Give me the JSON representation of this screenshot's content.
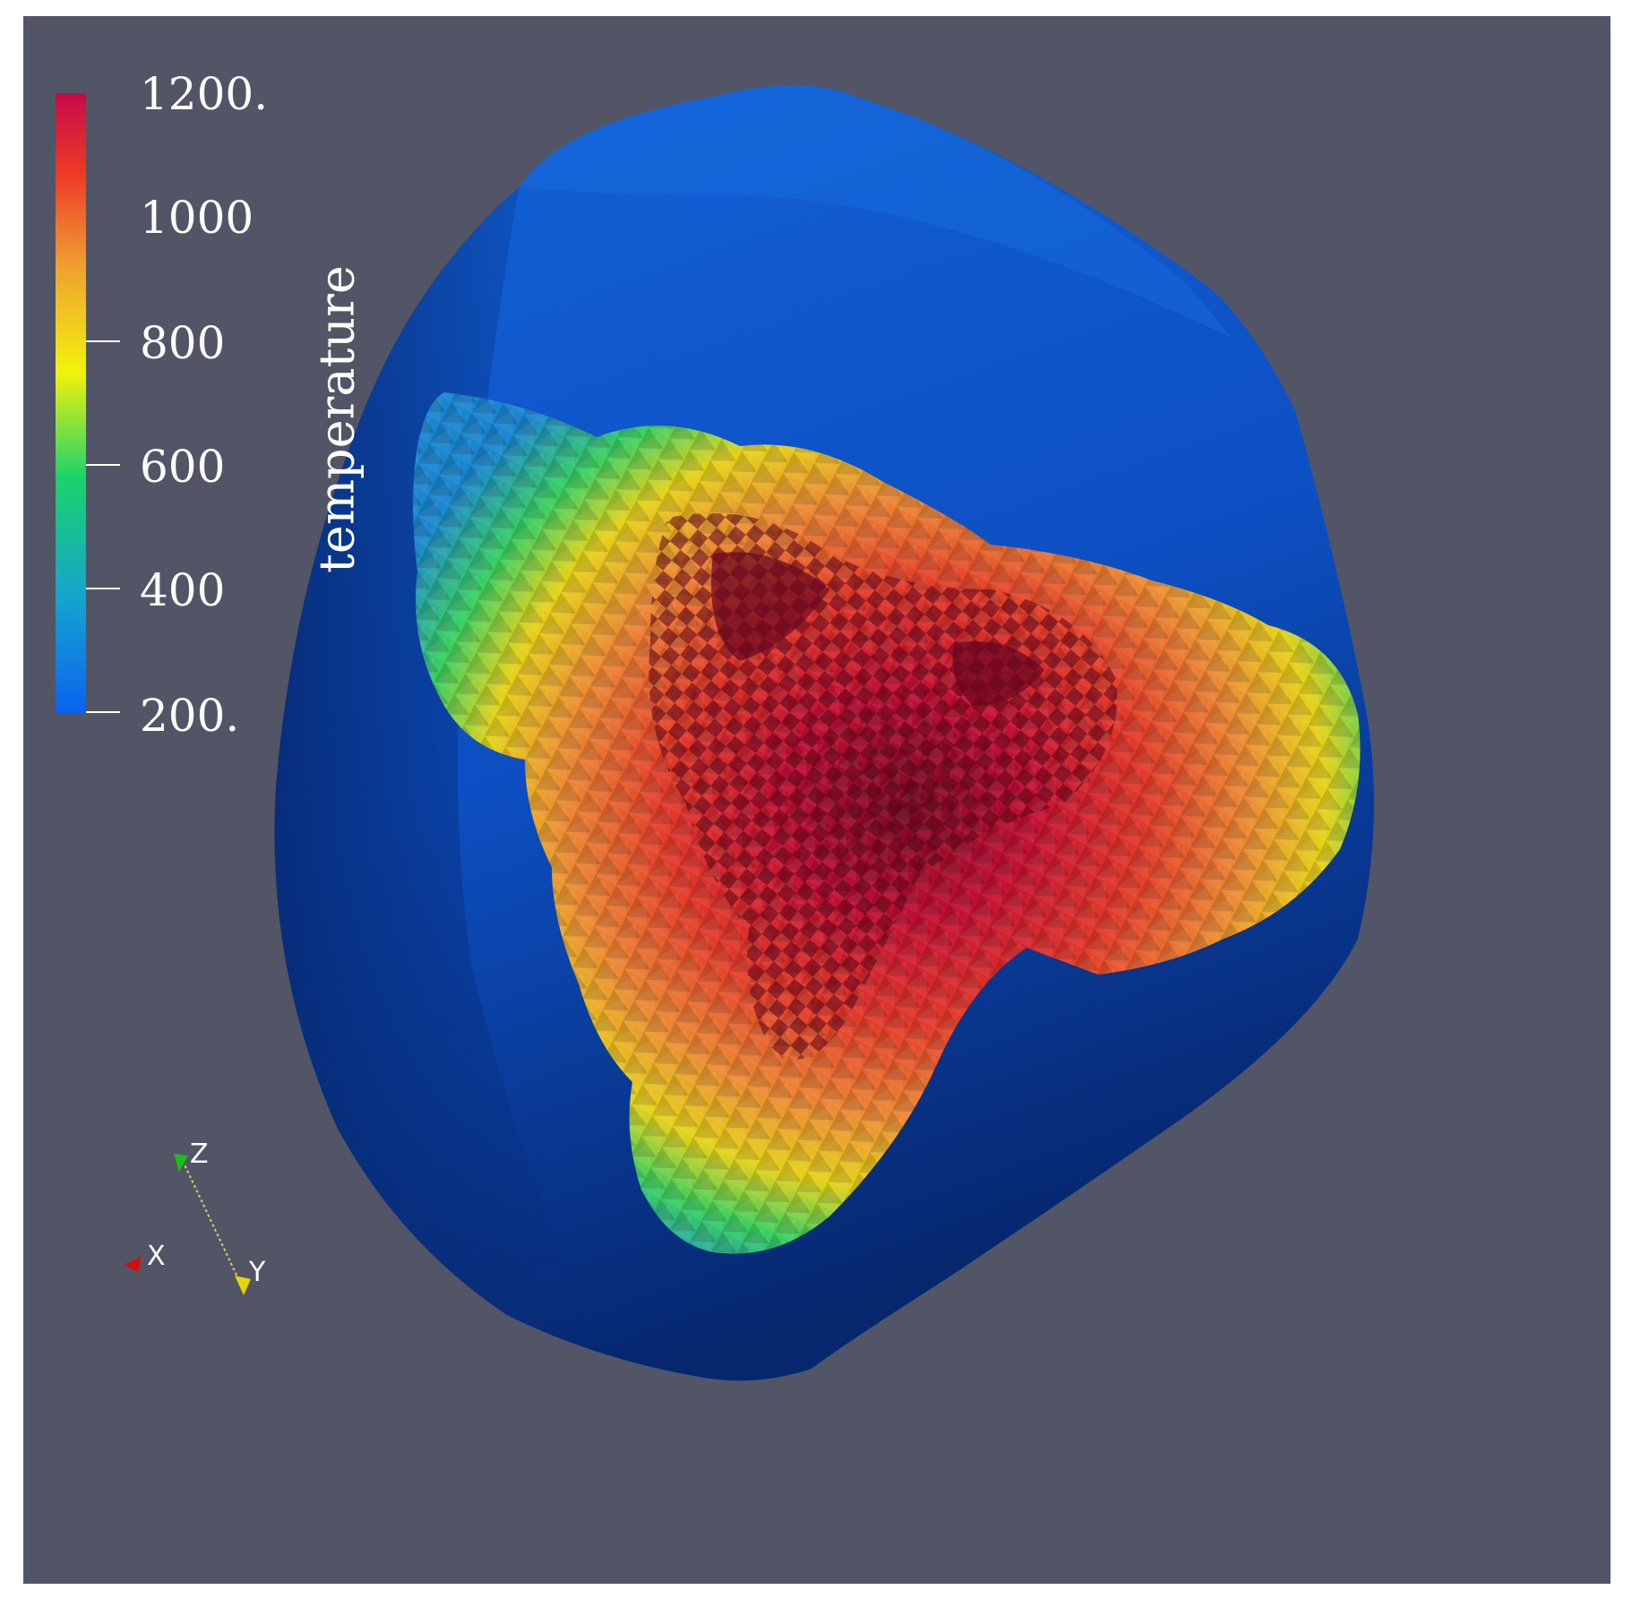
{
  "colorbar": {
    "title": "temperature",
    "ticks": [
      {
        "label": "1200.",
        "value": 1200
      },
      {
        "label": "1000",
        "value": 1000
      },
      {
        "label": "800",
        "value": 800
      },
      {
        "label": "600",
        "value": 600
      },
      {
        "label": "400",
        "value": 400
      },
      {
        "label": "200.",
        "value": 200
      }
    ],
    "range": [
      200,
      1200
    ],
    "colormap": [
      "#0b63f0",
      "#14a3d0",
      "#1bd36a",
      "#f2f20c",
      "#f0a030",
      "#ee3a26",
      "#c8094a"
    ]
  },
  "orientation_axes": {
    "x": {
      "label": "X",
      "color": "#d01010"
    },
    "y": {
      "label": "Y",
      "color": "#e6d500"
    },
    "z": {
      "label": "Z",
      "color": "#18c018"
    }
  },
  "colors": {
    "background": "#525566",
    "body_blue": "#0d4fc2",
    "body_dark_blue": "#082e7a"
  }
}
